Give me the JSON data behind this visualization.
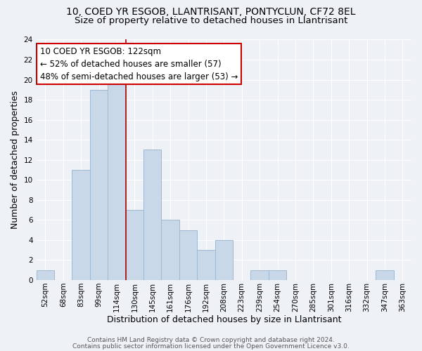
{
  "title": "10, COED YR ESGOB, LLANTRISANT, PONTYCLUN, CF72 8EL",
  "subtitle": "Size of property relative to detached houses in Llantrisant",
  "xlabel": "Distribution of detached houses by size in Llantrisant",
  "ylabel": "Number of detached properties",
  "bar_labels": [
    "52sqm",
    "68sqm",
    "83sqm",
    "99sqm",
    "114sqm",
    "130sqm",
    "145sqm",
    "161sqm",
    "176sqm",
    "192sqm",
    "208sqm",
    "223sqm",
    "239sqm",
    "254sqm",
    "270sqm",
    "285sqm",
    "301sqm",
    "316sqm",
    "332sqm",
    "347sqm",
    "363sqm"
  ],
  "bar_values": [
    1,
    0,
    11,
    19,
    20,
    7,
    13,
    6,
    5,
    3,
    4,
    0,
    1,
    1,
    0,
    0,
    0,
    0,
    0,
    1,
    0
  ],
  "bar_color": "#c8d8e8",
  "bar_edge_color": "#a0b8d0",
  "property_line_color": "#aa0000",
  "annotation_line1": "10 COED YR ESGOB: 122sqm",
  "annotation_line2": "← 52% of detached houses are smaller (57)",
  "annotation_line3": "48% of semi-detached houses are larger (53) →",
  "annotation_box_color": "#ffffff",
  "annotation_box_edge_color": "#cc0000",
  "ylim": [
    0,
    24
  ],
  "yticks": [
    0,
    2,
    4,
    6,
    8,
    10,
    12,
    14,
    16,
    18,
    20,
    22,
    24
  ],
  "footer_line1": "Contains HM Land Registry data © Crown copyright and database right 2024.",
  "footer_line2": "Contains public sector information licensed under the Open Government Licence v3.0.",
  "background_color": "#eef2f7",
  "grid_color": "#ffffff",
  "title_fontsize": 10,
  "subtitle_fontsize": 9.5,
  "axis_label_fontsize": 9,
  "tick_fontsize": 7.5,
  "annotation_fontsize": 8.5,
  "footer_fontsize": 6.5,
  "red_line_bar_index": 5
}
